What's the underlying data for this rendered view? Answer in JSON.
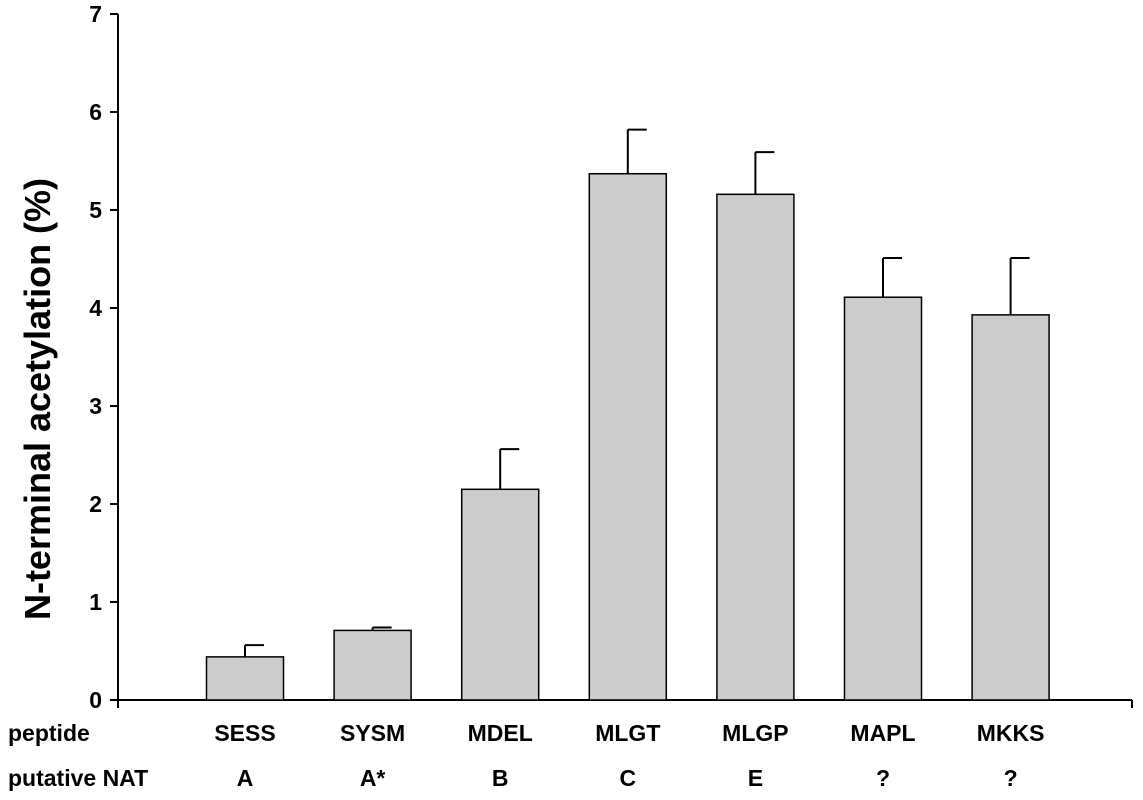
{
  "chart_data": {
    "type": "bar",
    "title": "",
    "xlabel": "",
    "ylabel": "N-terminal acetylation (%)",
    "ylim": [
      0,
      7
    ],
    "yticks": [
      "0",
      "1",
      "2",
      "3",
      "4",
      "5",
      "6",
      "7"
    ],
    "grid": false,
    "categories": [
      "SESS",
      "SYSM",
      "MDEL",
      "MLGT",
      "MLGP",
      "MAPL",
      "MKKS"
    ],
    "values": [
      0.44,
      0.71,
      2.15,
      5.37,
      5.16,
      4.11,
      3.93
    ],
    "errors": [
      0.12,
      0.03,
      0.41,
      0.45,
      0.43,
      0.4,
      0.58
    ],
    "category_rows": [
      {
        "label": "peptide",
        "values": [
          "SESS",
          "SYSM",
          "MDEL",
          "MLGT",
          "MLGP",
          "MAPL",
          "MKKS"
        ]
      },
      {
        "label": "putative NAT",
        "values": [
          "A",
          "A*",
          "B",
          "C",
          "E",
          "?",
          "?"
        ]
      }
    ],
    "bar_color": "#cccccc",
    "error_bar_color": "#000000"
  }
}
